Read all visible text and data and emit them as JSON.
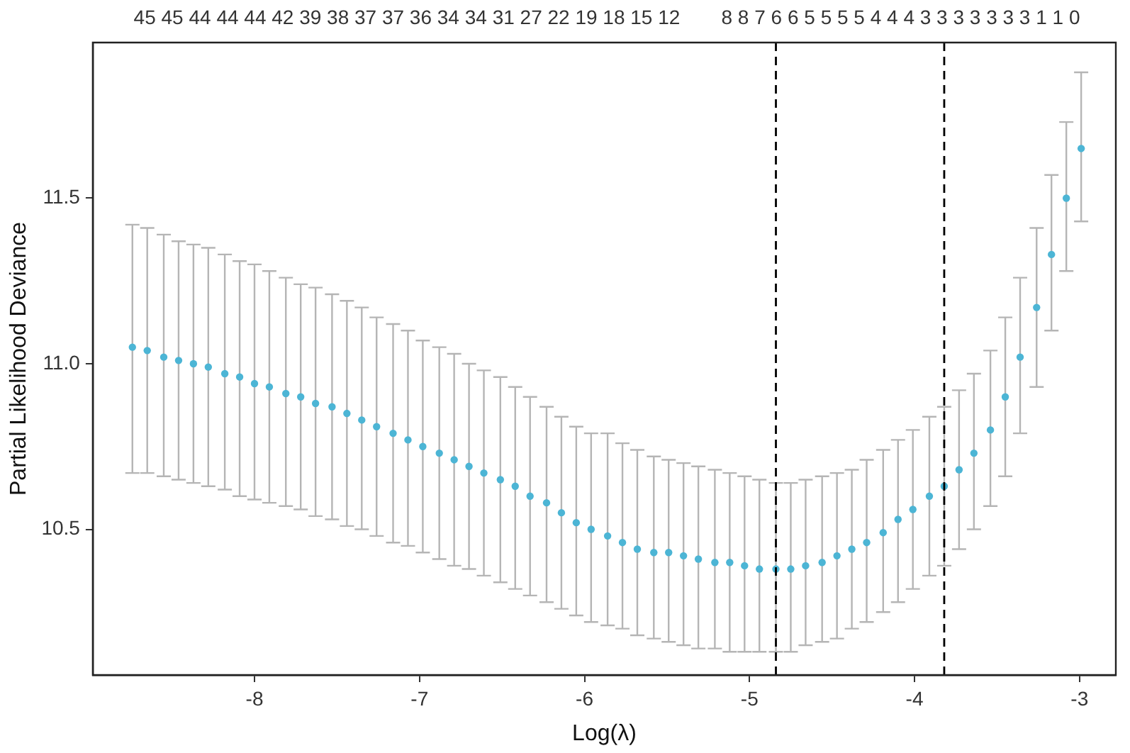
{
  "chart_data": {
    "type": "scatter",
    "xlabel": "Log(λ)",
    "ylabel": "Partial Likelihood Deviance",
    "xlim": [
      -8.98,
      -2.78
    ],
    "xticks": [
      -8,
      -7,
      -6,
      -5,
      -4,
      -3
    ],
    "ylim": [
      10.06,
      11.97
    ],
    "yticks": [
      {
        "value": 10.5,
        "label": "10.5"
      },
      {
        "value": 11,
        "label": "11.0"
      },
      {
        "value": 11.5,
        "label": "11.5"
      }
    ],
    "annotations": [
      "45 45 44 44 44 42 39 38 37 37 36 34 34 31 27 22 19 18 15 12",
      "8 8 7 6 6 5 5 5 5 4 4 4 3 3 3 3 3 3 3 1 1 0"
    ],
    "grid": false,
    "legend": false,
    "marker": "circle",
    "ref_lines": [
      {
        "axis": "x",
        "value": -4.84,
        "color": "#000000",
        "line_style": "dashed"
      },
      {
        "axis": "x",
        "value": -3.82,
        "color": "#000000",
        "line_style": "dashed"
      }
    ],
    "x": [
      -8.74,
      -8.65,
      -8.55,
      -8.46,
      -8.37,
      -8.28,
      -8.18,
      -8.09,
      -8.0,
      -7.91,
      -7.81,
      -7.72,
      -7.63,
      -7.53,
      -7.44,
      -7.35,
      -7.26,
      -7.16,
      -7.07,
      -6.98,
      -6.88,
      -6.79,
      -6.7,
      -6.61,
      -6.51,
      -6.42,
      -6.33,
      -6.23,
      -6.14,
      -6.05,
      -5.96,
      -5.86,
      -5.77,
      -5.68,
      -5.58,
      -5.49,
      -5.4,
      -5.31,
      -5.21,
      -5.12,
      -5.03,
      -4.94,
      -4.84,
      -4.75,
      -4.66,
      -4.56,
      -4.47,
      -4.38,
      -4.29,
      -4.19,
      -4.1,
      -4.01,
      -3.91,
      -3.82,
      -3.73,
      -3.64,
      -3.54,
      -3.45,
      -3.36,
      -3.26,
      -3.17,
      -3.08,
      -2.99
    ],
    "series": [
      {
        "color": "#4cb5d5",
        "values": [
          11.05,
          11.04,
          11.02,
          11.01,
          11.0,
          10.99,
          10.97,
          10.96,
          10.94,
          10.93,
          10.91,
          10.9,
          10.88,
          10.87,
          10.85,
          10.83,
          10.81,
          10.79,
          10.77,
          10.75,
          10.73,
          10.71,
          10.69,
          10.67,
          10.65,
          10.63,
          10.6,
          10.58,
          10.55,
          10.52,
          10.5,
          10.48,
          10.46,
          10.44,
          10.43,
          10.43,
          10.42,
          10.41,
          10.4,
          10.4,
          10.39,
          10.38,
          10.38,
          10.38,
          10.39,
          10.4,
          10.42,
          10.44,
          10.46,
          10.49,
          10.53,
          10.56,
          10.6,
          10.63,
          10.68,
          10.73,
          10.8,
          10.9,
          11.02,
          11.17,
          11.33,
          11.5,
          11.65
        ],
        "errors": [
          [
            10.67,
            11.42
          ],
          [
            10.67,
            11.41
          ],
          [
            10.66,
            11.39
          ],
          [
            10.65,
            11.37
          ],
          [
            10.64,
            11.36
          ],
          [
            10.63,
            11.35
          ],
          [
            10.62,
            11.33
          ],
          [
            10.6,
            11.31
          ],
          [
            10.59,
            11.3
          ],
          [
            10.58,
            11.28
          ],
          [
            10.57,
            11.26
          ],
          [
            10.56,
            11.24
          ],
          [
            10.54,
            11.23
          ],
          [
            10.53,
            11.21
          ],
          [
            10.51,
            11.19
          ],
          [
            10.5,
            11.17
          ],
          [
            10.48,
            11.14
          ],
          [
            10.46,
            11.12
          ],
          [
            10.45,
            11.1
          ],
          [
            10.43,
            11.07
          ],
          [
            10.41,
            11.05
          ],
          [
            10.39,
            11.03
          ],
          [
            10.38,
            11.0
          ],
          [
            10.36,
            10.98
          ],
          [
            10.34,
            10.96
          ],
          [
            10.32,
            10.93
          ],
          [
            10.3,
            10.9
          ],
          [
            10.28,
            10.87
          ],
          [
            10.26,
            10.84
          ],
          [
            10.24,
            10.81
          ],
          [
            10.22,
            10.79
          ],
          [
            10.21,
            10.79
          ],
          [
            10.2,
            10.76
          ],
          [
            10.18,
            10.74
          ],
          [
            10.17,
            10.72
          ],
          [
            10.16,
            10.71
          ],
          [
            10.15,
            10.7
          ],
          [
            10.14,
            10.69
          ],
          [
            10.14,
            10.68
          ],
          [
            10.13,
            10.67
          ],
          [
            10.13,
            10.66
          ],
          [
            10.13,
            10.65
          ],
          [
            10.13,
            10.64
          ],
          [
            10.13,
            10.64
          ],
          [
            10.15,
            10.65
          ],
          [
            10.16,
            10.66
          ],
          [
            10.17,
            10.67
          ],
          [
            10.2,
            10.68
          ],
          [
            10.22,
            10.71
          ],
          [
            10.25,
            10.74
          ],
          [
            10.28,
            10.77
          ],
          [
            10.32,
            10.8
          ],
          [
            10.36,
            10.84
          ],
          [
            10.39,
            10.87
          ],
          [
            10.44,
            10.92
          ],
          [
            10.5,
            10.97
          ],
          [
            10.57,
            11.04
          ],
          [
            10.66,
            11.14
          ],
          [
            10.79,
            11.26
          ],
          [
            10.93,
            11.41
          ],
          [
            11.1,
            11.57
          ],
          [
            11.28,
            11.73
          ],
          [
            11.43,
            11.88
          ]
        ]
      }
    ]
  }
}
